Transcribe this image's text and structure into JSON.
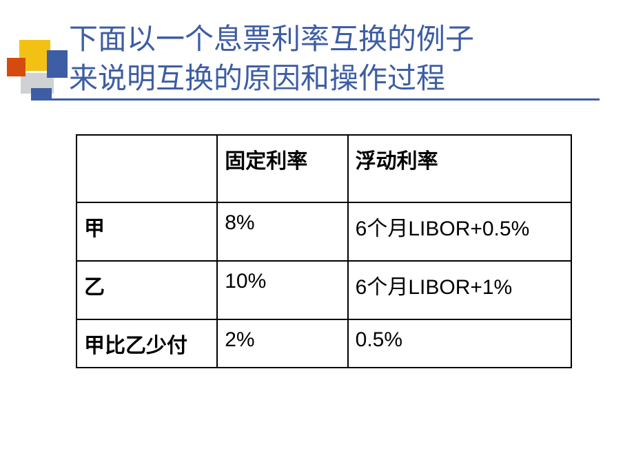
{
  "slide": {
    "title_line1": "下面以一个息票利率互换的例子",
    "title_line2": "来说明互换的原因和操作过程",
    "title_color": "#3d5da4",
    "title_fontsize": 42
  },
  "decoration": {
    "yellow": "#f2c113",
    "red": "#d54a0f",
    "blue": "#3d5da4",
    "gray": "#cfd1d3"
  },
  "table": {
    "border_color": "#000000",
    "text_color": "#000000",
    "header_fontsize": 30,
    "cell_fontsize": 30,
    "columns": [
      "",
      "固定利率",
      "浮动利率"
    ],
    "rows": [
      {
        "label": "甲",
        "fixed": "8%",
        "floating": "6个月LIBOR+0.5%"
      },
      {
        "label": "乙",
        "fixed": "10%",
        "floating": "6个月LIBOR+1%"
      },
      {
        "label": "甲比乙少付",
        "fixed": "2%",
        "floating": "0.5%"
      }
    ]
  }
}
